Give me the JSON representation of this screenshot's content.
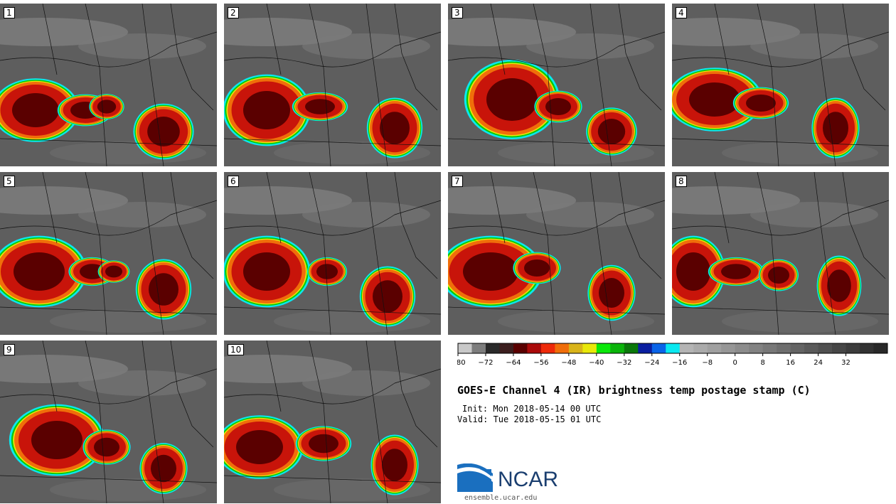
{
  "panels": [
    {
      "label": "1"
    },
    {
      "label": "2"
    },
    {
      "label": "3"
    },
    {
      "label": "4"
    },
    {
      "label": "5"
    },
    {
      "label": "6"
    },
    {
      "label": "7"
    },
    {
      "label": "8"
    },
    {
      "label": "9"
    },
    {
      "label": "10"
    }
  ],
  "colorbar": {
    "colors": [
      "#c8c8c8",
      "#7d7d7d",
      "#2a2a2a",
      "#3c1e1e",
      "#5a0000",
      "#aa0a0a",
      "#ee2a0a",
      "#f06e0a",
      "#d9b41a",
      "#e8e80a",
      "#0ae80a",
      "#0ab40a",
      "#0a780a",
      "#0a1ea0",
      "#0a64e8",
      "#0ae8f0",
      "#b4b4b4",
      "#aaaaaa",
      "#a0a0a0",
      "#969696",
      "#8c8c8c",
      "#828282",
      "#787878",
      "#6e6e6e",
      "#646464",
      "#5a5a5a",
      "#505050",
      "#464646",
      "#3c3c3c",
      "#323232",
      "#282828"
    ],
    "tick_labels": [
      "-80",
      "-72",
      "-64",
      "-56",
      "-48",
      "-40",
      "-32",
      "-24",
      "-16",
      "-8",
      "0",
      "8",
      "16",
      "24",
      "32"
    ],
    "unit": "C"
  },
  "title": "GOES-E Channel 4 (IR) brightness temp postage stamp (C)",
  "init_text": "Init: Mon 2018-05-14 00 UTC",
  "valid_text": "Valid: Tue 2018-05-15 01 UTC",
  "logo": {
    "name": "NCAR",
    "url": "ensemble.ucar.edu"
  },
  "map_colors": {
    "background": "#5e5e5e",
    "cold_core": "#5a0000",
    "red": "#c8140a",
    "orange": "#f06e0a",
    "yellow": "#e8e80a",
    "green": "#0ac80a",
    "cyan": "#0ae8f0",
    "borders": "#111111"
  }
}
